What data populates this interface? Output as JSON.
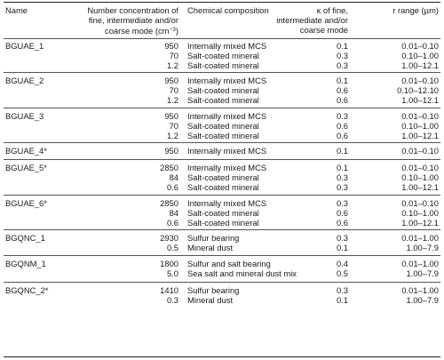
{
  "header": {
    "name": "Name",
    "number_lines": [
      "Number concentration of",
      "fine, intermediate and/or",
      "coarse mode (cm"
    ],
    "number_exp": "−3",
    "number_close": ")",
    "composition": "Chemical composition",
    "kappa_lines": [
      "κ of fine,",
      "intermediate and/or",
      "coarse mode"
    ],
    "r_label": "r range (µm)"
  },
  "groups": [
    {
      "name": "BGUAE_1",
      "rows": [
        {
          "n": "950",
          "comp": "Internally mixed MCS",
          "k": "0.1",
          "r": "0.01–0.10"
        },
        {
          "n": "70",
          "comp": "Salt-coated mineral",
          "k": "0.3",
          "r": "0.10–1.00"
        },
        {
          "n": "1.2",
          "comp": "Salt-coated mineral",
          "k": "0.3",
          "r": "1.00–12.1"
        }
      ]
    },
    {
      "name": "BGUAE_2",
      "rows": [
        {
          "n": "950",
          "comp": "Internally mixed MCS",
          "k": "0.1",
          "r": "0.01–0.10"
        },
        {
          "n": "70",
          "comp": "Salt-coated mineral",
          "k": "0.6",
          "r": "0.10–12.10"
        },
        {
          "n": "1.2",
          "comp": "Salt-coated mineral",
          "k": "0.6",
          "r": "1.00–12.1"
        }
      ]
    },
    {
      "name": "BGUAE_3",
      "rows": [
        {
          "n": "950",
          "comp": "Internally mixed MCS",
          "k": "0.3",
          "r": "0.01–0.10"
        },
        {
          "n": "70",
          "comp": "Salt-coated mineral",
          "k": "0.6",
          "r": "0.10–1.00"
        },
        {
          "n": "1.2",
          "comp": "Salt-coated mineral",
          "k": "0.6",
          "r": "1.00–12.1"
        }
      ]
    },
    {
      "name": "BGUAE_4*",
      "rows": [
        {
          "n": "950",
          "comp": "Internally mixed MCS",
          "k": "0.1",
          "r": "0.01–0.10"
        }
      ]
    },
    {
      "name": "BGUAE_5*",
      "rows": [
        {
          "n": "2850",
          "comp": "Internally mixed MCS",
          "k": "0.1",
          "r": "0.01–0.10"
        },
        {
          "n": "84",
          "comp": "Salt-coated mineral",
          "k": "0.3",
          "r": "0.10–1.00"
        },
        {
          "n": "0.6",
          "comp": "Salt-coated mineral",
          "k": "0.3",
          "r": "1.00–12.1"
        }
      ]
    },
    {
      "name": "BGUAE_6*",
      "rows": [
        {
          "n": "2850",
          "comp": "Internally mixed MCS",
          "k": "0.3",
          "r": "0.01–0.10"
        },
        {
          "n": "84",
          "comp": "Salt-coated mineral",
          "k": "0.6",
          "r": "0.10–1.00"
        },
        {
          "n": "0.6",
          "comp": "Salt-coated mineral",
          "k": "0.6",
          "r": "1.00–12.1"
        }
      ]
    },
    {
      "name": "BGQNC_1",
      "rows": [
        {
          "n": "2930",
          "comp": "Sulfur bearing",
          "k": "0.3",
          "r": "0.01–1.00"
        },
        {
          "n": "0.5",
          "comp": "Mineral dust",
          "k": "0.1",
          "r": "1.00–7.9"
        }
      ]
    },
    {
      "name": "BGQNM_1",
      "rows": [
        {
          "n": "1800",
          "comp": "Sulfur and salt bearing",
          "k": "0.4",
          "r": "0.01–1.00"
        },
        {
          "n": "5.0",
          "comp": "Sea salt and mineral dust mix",
          "k": "0.5",
          "r": "1.00–7.9"
        }
      ]
    },
    {
      "name": "BGQNC_2*",
      "rows": [
        {
          "n": "1410",
          "comp": "Sulfur bearing",
          "k": "0.3",
          "r": "0.01–1.00"
        },
        {
          "n": "0.3",
          "comp": "Mineral dust",
          "k": "0.1",
          "r": "1.00–7.9"
        }
      ]
    }
  ]
}
